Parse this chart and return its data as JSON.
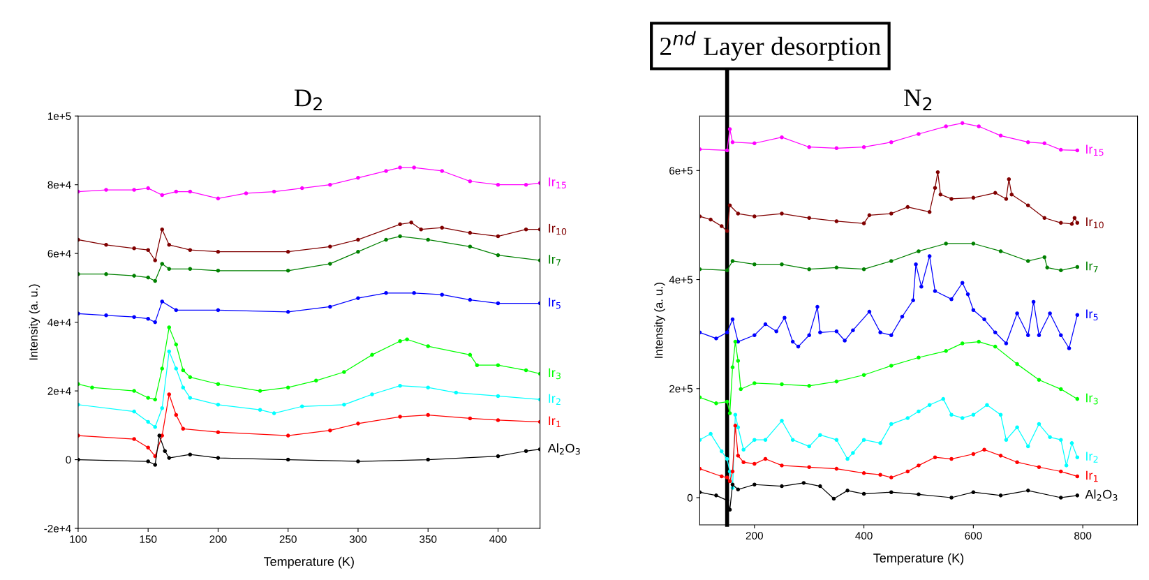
{
  "chart_data": [
    {
      "type": "line",
      "title": "D$_{2}$",
      "xlabel": "Temperature (K)",
      "ylabel": "Intensity (a. u.)",
      "marker": "circle",
      "line_style": "solid",
      "xlim": [
        100,
        430
      ],
      "xticks": [
        100,
        150,
        200,
        250,
        300,
        350,
        400
      ],
      "ylim": [
        -20000,
        100000
      ],
      "yticks": [
        {
          "value": -20000,
          "label": "-2e+4"
        },
        0,
        {
          "value": 20000,
          "label": "2e+4"
        },
        {
          "value": 40000,
          "label": "4e+4"
        },
        {
          "value": 60000,
          "label": "6e+4"
        },
        {
          "value": 80000,
          "label": "8e+4"
        },
        {
          "value": 100000,
          "label": "1e+5"
        }
      ],
      "series": [
        {
          "name": "Ir$_{15}$",
          "color": "#ff00ff",
          "x": [
            100,
            120,
            140,
            150,
            160,
            170,
            180,
            200,
            220,
            240,
            260,
            280,
            300,
            320,
            330,
            340,
            360,
            380,
            400,
            420,
            430
          ],
          "values": [
            78000,
            78500,
            78500,
            79000,
            77000,
            78000,
            78000,
            76000,
            77500,
            78000,
            79000,
            80000,
            82000,
            84000,
            85000,
            85000,
            84000,
            81000,
            80000,
            80000,
            80500
          ]
        },
        {
          "name": "Ir$_{10}$",
          "color": "#800000",
          "x": [
            100,
            120,
            140,
            150,
            155,
            160,
            165,
            180,
            200,
            250,
            280,
            300,
            330,
            338,
            345,
            360,
            380,
            400,
            420,
            430
          ],
          "values": [
            64000,
            62500,
            61500,
            61000,
            58000,
            67000,
            62500,
            61000,
            60500,
            60500,
            62000,
            64000,
            68500,
            69000,
            67000,
            67500,
            66000,
            65000,
            67000,
            67000
          ]
        },
        {
          "name": "Ir$_{7}$",
          "color": "#008000",
          "x": [
            100,
            120,
            140,
            150,
            155,
            160,
            165,
            180,
            200,
            250,
            280,
            300,
            320,
            330,
            350,
            380,
            400,
            430
          ],
          "values": [
            54000,
            54000,
            53500,
            53000,
            52000,
            57000,
            55500,
            55500,
            55000,
            55000,
            57000,
            60500,
            64000,
            65000,
            64000,
            62000,
            59500,
            58000
          ]
        },
        {
          "name": "Ir$_{5}$",
          "color": "#0000ff",
          "x": [
            100,
            120,
            140,
            150,
            155,
            160,
            170,
            200,
            250,
            280,
            300,
            320,
            340,
            360,
            380,
            400,
            430
          ],
          "values": [
            42500,
            42000,
            41500,
            41000,
            40000,
            46000,
            43500,
            43500,
            43000,
            44500,
            47000,
            48500,
            48500,
            48000,
            46500,
            45500,
            45500
          ]
        },
        {
          "name": "Ir$_{3}$",
          "color": "#00ff00",
          "x": [
            100,
            110,
            140,
            150,
            155,
            160,
            165,
            170,
            175,
            180,
            200,
            230,
            250,
            270,
            290,
            310,
            330,
            335,
            350,
            380,
            385,
            400,
            420,
            430
          ],
          "values": [
            22000,
            21000,
            20000,
            18000,
            17500,
            26500,
            38500,
            33500,
            26000,
            24000,
            22000,
            20000,
            21000,
            23000,
            25500,
            30500,
            34500,
            35000,
            33000,
            30500,
            27500,
            27500,
            26000,
            25000
          ]
        },
        {
          "name": "Ir$_{2}$",
          "color": "#00ffff",
          "x": [
            100,
            140,
            150,
            155,
            160,
            165,
            170,
            175,
            180,
            200,
            230,
            240,
            260,
            290,
            310,
            330,
            350,
            370,
            400,
            430
          ],
          "values": [
            16000,
            14000,
            11000,
            9500,
            15000,
            31500,
            26500,
            21000,
            18000,
            16000,
            14500,
            13500,
            15500,
            16000,
            19000,
            21500,
            21000,
            19500,
            18500,
            17500
          ]
        },
        {
          "name": "Ir$_{1}$",
          "color": "#ff0000",
          "x": [
            100,
            140,
            150,
            155,
            160,
            165,
            170,
            175,
            200,
            250,
            280,
            300,
            330,
            350,
            380,
            400,
            430
          ],
          "values": [
            7000,
            6000,
            3500,
            1000,
            7000,
            19000,
            13000,
            9000,
            8000,
            7000,
            8500,
            10500,
            12500,
            13000,
            12000,
            11500,
            11000
          ]
        },
        {
          "name": "Al$_{2}$O$_{3}$",
          "color": "#000000",
          "x": [
            100,
            150,
            155,
            158,
            162,
            165,
            180,
            200,
            250,
            300,
            350,
            400,
            420,
            430
          ],
          "values": [
            0,
            -500,
            -1500,
            7000,
            2500,
            500,
            1500,
            500,
            0,
            -500,
            0,
            1000,
            2500,
            3000
          ]
        }
      ]
    },
    {
      "type": "line",
      "title": "N$_{2}$",
      "xlabel": "Temperature (K)",
      "ylabel": "Intensity (a. u.)",
      "marker": "circle",
      "line_style": "solid",
      "xlim": [
        100,
        900
      ],
      "xticks": [
        200,
        400,
        600,
        800
      ],
      "ylim": [
        -50000,
        700000
      ],
      "yticks": [
        0,
        {
          "value": 200000,
          "label": "2e+5"
        },
        {
          "value": 400000,
          "label": "4e+5"
        },
        {
          "value": 600000,
          "label": "6e+5"
        }
      ],
      "ref_lines": [
        {
          "axis": "x",
          "value": 150,
          "label": "2$^{nd}$ Layer desorption",
          "color": "#000000",
          "line_style": "solid"
        }
      ],
      "series": [
        {
          "name": "Ir$_{15}$",
          "color": "#ff00ff",
          "x": [
            100,
            150,
            155,
            160,
            200,
            250,
            300,
            350,
            400,
            450,
            500,
            550,
            580,
            610,
            650,
            700,
            730,
            760,
            790
          ],
          "values": [
            639000,
            637000,
            676000,
            652000,
            650000,
            661000,
            643000,
            641000,
            643000,
            652000,
            667000,
            681000,
            687000,
            681000,
            664000,
            652000,
            650000,
            638000,
            637000
          ]
        },
        {
          "name": "Ir$_{10}$",
          "color": "#800000",
          "x": [
            100,
            120,
            140,
            150,
            155,
            170,
            200,
            250,
            300,
            350,
            400,
            410,
            450,
            480,
            520,
            530,
            535,
            540,
            560,
            600,
            640,
            660,
            665,
            670,
            700,
            730,
            760,
            780,
            785,
            790
          ],
          "values": [
            516000,
            510000,
            498000,
            489000,
            536000,
            521000,
            516000,
            521000,
            513000,
            507000,
            503000,
            518000,
            521000,
            533000,
            524000,
            568000,
            597000,
            556000,
            548000,
            550000,
            559000,
            548000,
            584000,
            556000,
            536000,
            513000,
            504000,
            502000,
            513000,
            504000
          ]
        },
        {
          "name": "Ir$_{7}$",
          "color": "#008000",
          "x": [
            100,
            150,
            160,
            200,
            250,
            300,
            350,
            400,
            450,
            500,
            550,
            600,
            650,
            700,
            730,
            735,
            760,
            790
          ],
          "values": [
            419000,
            417000,
            434000,
            428000,
            428000,
            419000,
            422000,
            419000,
            434000,
            452000,
            466000,
            466000,
            452000,
            434000,
            441000,
            422000,
            417000,
            423000
          ]
        },
        {
          "name": "Ir$_{5}$",
          "color": "#0000ff",
          "x": [
            100,
            130,
            150,
            160,
            170,
            200,
            220,
            240,
            255,
            270,
            280,
            300,
            315,
            320,
            350,
            365,
            380,
            410,
            430,
            450,
            470,
            490,
            495,
            505,
            520,
            530,
            560,
            580,
            590,
            600,
            620,
            640,
            660,
            680,
            700,
            710,
            720,
            740,
            760,
            775,
            790
          ],
          "values": [
            303000,
            292000,
            303000,
            327000,
            286000,
            298000,
            318000,
            305000,
            330000,
            286000,
            277000,
            298000,
            350000,
            303000,
            305000,
            288000,
            307000,
            341000,
            303000,
            298000,
            332000,
            362000,
            428000,
            387000,
            443000,
            379000,
            364000,
            394000,
            373000,
            344000,
            327000,
            303000,
            283000,
            338000,
            298000,
            359000,
            298000,
            338000,
            298000,
            274000,
            335000
          ]
        },
        {
          "name": "Ir$_{3}$",
          "color": "#00ff00",
          "x": [
            100,
            130,
            150,
            155,
            160,
            165,
            170,
            175,
            200,
            250,
            300,
            350,
            400,
            450,
            500,
            550,
            580,
            610,
            640,
            680,
            720,
            760,
            790
          ],
          "values": [
            184000,
            173000,
            176000,
            155000,
            239000,
            286000,
            251000,
            199000,
            210000,
            208000,
            205000,
            213000,
            225000,
            242000,
            257000,
            269000,
            283000,
            286000,
            277000,
            245000,
            216000,
            199000,
            181000
          ]
        },
        {
          "name": "Ir$_{2}$",
          "color": "#00ffff",
          "x": [
            100,
            120,
            140,
            150,
            155,
            160,
            165,
            170,
            180,
            200,
            220,
            250,
            270,
            300,
            320,
            350,
            370,
            380,
            400,
            430,
            450,
            480,
            500,
            520,
            545,
            560,
            580,
            600,
            625,
            650,
            660,
            680,
            700,
            720,
            740,
            760,
            770,
            780,
            790
          ],
          "values": [
            106000,
            117000,
            85000,
            71000,
            48000,
            18000,
            152000,
            129000,
            88000,
            106000,
            106000,
            141000,
            106000,
            94000,
            115000,
            106000,
            71000,
            82000,
            106000,
            100000,
            135000,
            146000,
            158000,
            170000,
            181000,
            152000,
            146000,
            152000,
            170000,
            152000,
            106000,
            129000,
            94000,
            135000,
            111000,
            106000,
            59000,
            100000,
            74000
          ]
        },
        {
          "name": "Ir$_{1}$",
          "color": "#ff0000",
          "x": [
            100,
            140,
            150,
            155,
            160,
            165,
            170,
            180,
            200,
            220,
            250,
            300,
            350,
            400,
            430,
            450,
            480,
            500,
            530,
            560,
            600,
            620,
            650,
            680,
            720,
            760,
            790
          ],
          "values": [
            53000,
            39000,
            37000,
            30000,
            48000,
            132000,
            77000,
            65000,
            62000,
            71000,
            59000,
            56000,
            53000,
            45000,
            42000,
            37000,
            48000,
            59000,
            74000,
            71000,
            80000,
            88000,
            77000,
            65000,
            56000,
            48000,
            39000
          ]
        },
        {
          "name": "Al$_{2}$O$_{3}$",
          "color": "#000000",
          "x": [
            100,
            130,
            150,
            155,
            160,
            170,
            200,
            250,
            290,
            320,
            345,
            370,
            400,
            450,
            500,
            560,
            600,
            650,
            700,
            760,
            790
          ],
          "values": [
            10000,
            4000,
            -5000,
            -22000,
            24000,
            15000,
            24000,
            21000,
            27000,
            21000,
            -2000,
            13000,
            7000,
            10000,
            6000,
            0,
            10000,
            4000,
            13000,
            0,
            4000
          ]
        }
      ]
    }
  ]
}
